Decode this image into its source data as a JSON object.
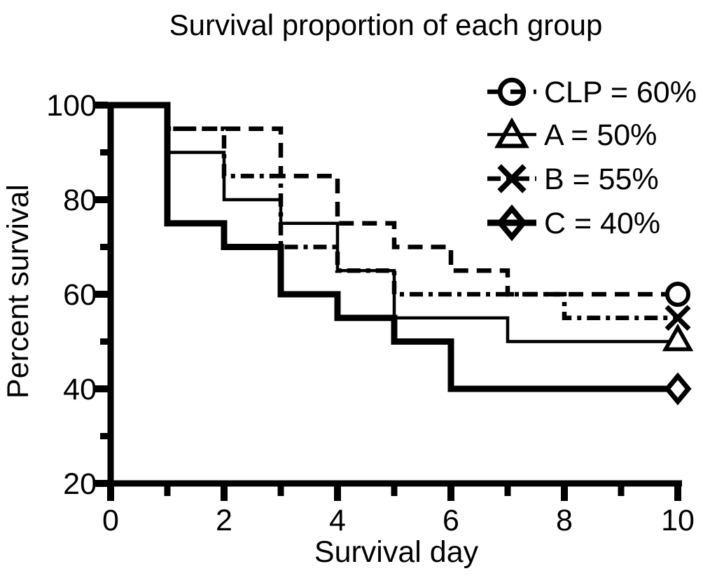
{
  "chart_data": {
    "type": "line",
    "subtype": "kaplan-meier-step-survival",
    "title": "Survival proportion of each group",
    "xlabel": "Survival day",
    "ylabel": "Percent survival",
    "xlim": [
      0,
      10
    ],
    "ylim": [
      20,
      100
    ],
    "grid": false,
    "legend_position": "top-right",
    "colors": {
      "line": "#000000",
      "background": "#ffffff"
    },
    "x_ticks_major": [
      0,
      2,
      4,
      6,
      8,
      10
    ],
    "x_ticks_minor": [
      1,
      3,
      5,
      7,
      9
    ],
    "y_ticks_major": [
      100,
      80,
      60,
      40,
      20
    ],
    "y_ticks_minor": [
      90,
      70,
      50,
      30
    ],
    "series": [
      {
        "name": "CLP",
        "legend_label": "CLP = 60%",
        "final_survival_percent": 60,
        "line_style": "dashed",
        "marker": "circle",
        "step_points": [
          [
            0,
            100
          ],
          [
            1,
            95
          ],
          [
            3,
            85
          ],
          [
            4,
            75
          ],
          [
            5,
            70
          ],
          [
            6,
            65
          ],
          [
            7,
            60
          ],
          [
            10,
            60
          ]
        ]
      },
      {
        "name": "A",
        "legend_label": "A = 50%",
        "final_survival_percent": 50,
        "line_style": "solid-thin",
        "marker": "triangle",
        "step_points": [
          [
            0,
            100
          ],
          [
            1,
            90
          ],
          [
            2,
            80
          ],
          [
            3,
            75
          ],
          [
            4,
            65
          ],
          [
            5,
            55
          ],
          [
            7,
            50
          ],
          [
            10,
            50
          ]
        ]
      },
      {
        "name": "B",
        "legend_label": "B = 55%",
        "final_survival_percent": 55,
        "line_style": "dash-dot",
        "marker": "x",
        "step_points": [
          [
            0,
            100
          ],
          [
            1,
            95
          ],
          [
            2,
            85
          ],
          [
            3,
            70
          ],
          [
            4,
            65
          ],
          [
            5,
            60
          ],
          [
            8,
            55
          ],
          [
            10,
            55
          ]
        ]
      },
      {
        "name": "C",
        "legend_label": "C = 40%",
        "final_survival_percent": 40,
        "line_style": "solid-thick",
        "marker": "diamond",
        "step_points": [
          [
            0,
            100
          ],
          [
            1,
            75
          ],
          [
            2,
            70
          ],
          [
            3,
            60
          ],
          [
            4,
            55
          ],
          [
            5,
            50
          ],
          [
            6,
            40
          ],
          [
            10,
            40
          ]
        ]
      }
    ]
  }
}
